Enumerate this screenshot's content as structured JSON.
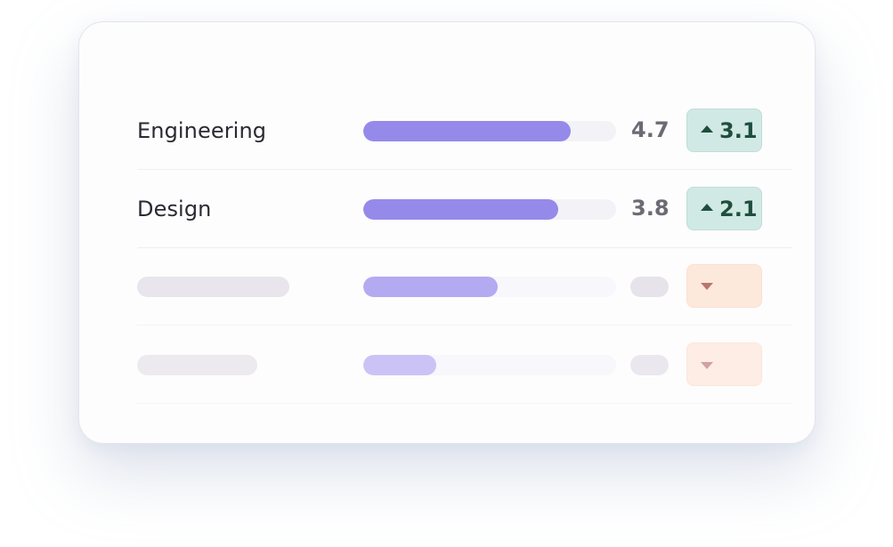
{
  "rows": [
    {
      "label": "Engineering",
      "score": "4.7",
      "bar_fraction": 0.82,
      "delta": "3.1",
      "trend": "up"
    },
    {
      "label": "Design",
      "score": "3.8",
      "bar_fraction": 0.77,
      "delta": "2.1",
      "trend": "up"
    },
    {
      "label": "",
      "score": "",
      "bar_fraction": 0.53,
      "delta": "",
      "trend": "down"
    },
    {
      "label": "",
      "score": "",
      "bar_fraction": 0.29,
      "delta": "",
      "trend": "down"
    }
  ],
  "icons": {
    "trend_up": "caret-up-icon",
    "trend_down": "caret-down-icon"
  },
  "colors": {
    "bar_fill": "#958aea",
    "up_badge_bg": "#d1e9e4",
    "up_badge_text": "#1f4e3d",
    "down_badge_bg": "#fde8dc",
    "down_caret": "#b87670"
  }
}
